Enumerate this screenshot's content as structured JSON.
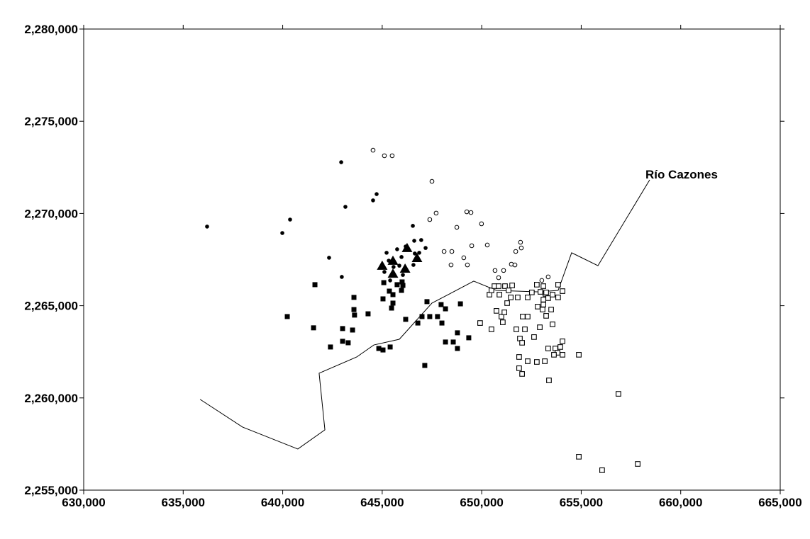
{
  "chart_data": {
    "type": "scatter",
    "xlim": [
      630000,
      665000
    ],
    "ylim": [
      2255000,
      2280000
    ],
    "xticks": [
      {
        "value": 630000,
        "label": "630,000"
      },
      {
        "value": 635000,
        "label": "635,000"
      },
      {
        "value": 640000,
        "label": "640,000"
      },
      {
        "value": 645000,
        "label": "645,000"
      },
      {
        "value": 650000,
        "label": "650,000"
      },
      {
        "value": 655000,
        "label": "655,000"
      },
      {
        "value": 660000,
        "label": "660,000"
      },
      {
        "value": 665000,
        "label": "665,000"
      }
    ],
    "yticks": [
      {
        "value": 2255000,
        "label": "2,255,000"
      },
      {
        "value": 2260000,
        "label": "2,260,000"
      },
      {
        "value": 2265000,
        "label": "2,265,000"
      },
      {
        "value": 2270000,
        "label": "2,270,000"
      },
      {
        "value": 2275000,
        "label": "2,275,000"
      },
      {
        "value": 2280000,
        "label": "2,280,000"
      }
    ],
    "series": [
      {
        "marker": "dot",
        "color": "#000000",
        "x": [
          636200,
          639980,
          640370,
          642940,
          643150,
          644720,
          644540,
          642330,
          642970,
          646540,
          645220,
          645750,
          646180,
          645970,
          646610,
          646960,
          647180,
          646640,
          646860,
          645110,
          645570,
          645860,
          645400,
          646040,
          646570,
          645330
        ],
        "values": [
          2269290,
          2268940,
          2269670,
          2272780,
          2270360,
          2271050,
          2270710,
          2267600,
          2266560,
          2269330,
          2267870,
          2268060,
          2268210,
          2267640,
          2268520,
          2268560,
          2268130,
          2267830,
          2267870,
          2266830,
          2267100,
          2267170,
          2266370,
          2266670,
          2267210,
          2267440
        ]
      },
      {
        "marker": "open-circle",
        "color": "#000000",
        "x": [
          644540,
          645110,
          645500,
          647500,
          647390,
          647710,
          649250,
          649460,
          648750,
          649990,
          649500,
          650280,
          648110,
          648500,
          648460,
          649100,
          649280,
          651950,
          651990,
          651710,
          651490,
          651670,
          650670,
          651100,
          650850,
          653020,
          653340
        ],
        "values": [
          2273430,
          2273130,
          2273130,
          2271740,
          2269670,
          2270020,
          2270090,
          2270050,
          2269250,
          2269440,
          2268250,
          2268290,
          2267940,
          2267940,
          2267210,
          2267600,
          2267210,
          2268440,
          2268130,
          2267940,
          2267250,
          2267210,
          2266910,
          2266910,
          2266520,
          2266370,
          2266560
        ]
      },
      {
        "marker": "square",
        "color": "#000000",
        "x": [
          641620,
          640230,
          641550,
          642400,
          643010,
          643510,
          643010,
          643290,
          643580,
          643580,
          643610,
          644290,
          645080,
          645360,
          645040,
          645540,
          645750,
          645970,
          646040,
          645470,
          645540,
          646000,
          646180,
          647250,
          647000,
          647390,
          646790,
          647780,
          647960,
          648180,
          648000,
          644830,
          645040,
          645400,
          648180,
          648570,
          648780,
          648780,
          648930,
          649350,
          647140
        ],
        "values": [
          2266140,
          2264410,
          2263800,
          2262760,
          2263760,
          2263680,
          2263070,
          2262990,
          2265450,
          2264790,
          2264490,
          2264560,
          2266250,
          2265790,
          2265370,
          2265600,
          2266140,
          2265830,
          2266100,
          2264870,
          2265140,
          2266290,
          2264260,
          2265220,
          2264410,
          2264410,
          2264060,
          2264410,
          2265060,
          2264830,
          2264060,
          2262680,
          2262600,
          2262760,
          2263030,
          2263030,
          2263530,
          2262680,
          2265100,
          2263260,
          2261760
        ]
      },
      {
        "marker": "open-square",
        "color": "#000000",
        "x": [
          650390,
          650490,
          650640,
          650850,
          650890,
          651170,
          651350,
          651460,
          651280,
          651530,
          651810,
          652310,
          652520,
          652770,
          652950,
          653100,
          653100,
          653200,
          653340,
          653240,
          653560,
          653840,
          653840,
          654060,
          652810,
          653060,
          653100,
          653240,
          653490,
          653560,
          652920,
          652310,
          652060,
          652170,
          651740,
          651920,
          652030,
          652630,
          653340,
          653700,
          653950,
          654060,
          653810,
          654060,
          653630,
          654880,
          651880,
          651880,
          652030,
          652310,
          652770,
          653170,
          653380,
          656870,
          654880,
          656050,
          657840,
          649920,
          650490,
          650740,
          650990,
          651060,
          651140
        ],
        "values": [
          2265600,
          2265830,
          2266060,
          2266060,
          2265600,
          2266060,
          2265830,
          2265450,
          2265140,
          2266100,
          2265450,
          2265450,
          2265720,
          2266140,
          2265750,
          2265330,
          2266060,
          2265640,
          2265410,
          2265720,
          2265600,
          2266140,
          2265450,
          2265790,
          2264950,
          2264790,
          2265060,
          2264450,
          2264790,
          2263990,
          2263830,
          2264410,
          2264410,
          2263720,
          2263720,
          2263220,
          2262990,
          2263300,
          2262680,
          2262680,
          2262760,
          2263070,
          2262450,
          2262340,
          2262340,
          2262340,
          2262220,
          2261610,
          2261300,
          2261990,
          2261950,
          2261990,
          2260950,
          2260220,
          2256810,
          2256080,
          2256420,
          2264060,
          2263720,
          2264720,
          2264410,
          2264100,
          2264640
        ]
      },
      {
        "marker": "triangle",
        "color": "#000000",
        "x": [
          645000,
          645540,
          646250,
          646150,
          645540,
          646750
        ],
        "values": [
          2267140,
          2267410,
          2268100,
          2266980,
          2266710,
          2267560
        ]
      }
    ],
    "river": {
      "label": "Río Cazones",
      "color": "#000000",
      "x": [
        635850,
        637980,
        640760,
        642120,
        641830,
        643720,
        644580,
        645860,
        647500,
        649600,
        650740,
        652880,
        653840,
        654520,
        655840,
        658440
      ],
      "values": [
        2259920,
        2258420,
        2257230,
        2258270,
        2261340,
        2262220,
        2262870,
        2263180,
        2265140,
        2266330,
        2265830,
        2265750,
        2265830,
        2267870,
        2267170,
        2271820
      ]
    }
  }
}
